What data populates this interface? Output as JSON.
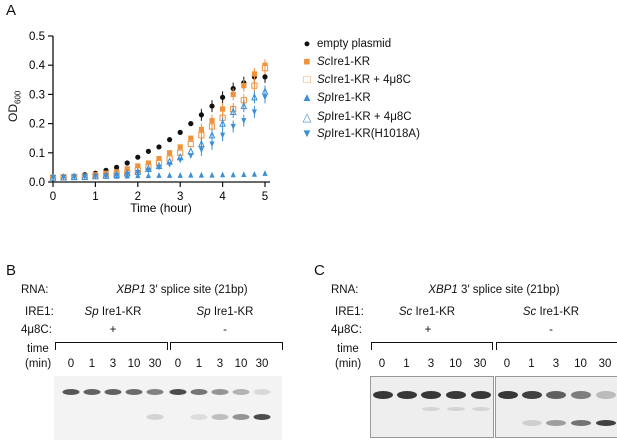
{
  "panelA": {
    "letter": "A",
    "chart_data": {
      "type": "scatter",
      "xlabel": "Time (hour)",
      "ylabel": "OD600",
      "xlim": [
        0,
        5.2
      ],
      "ylim": [
        0,
        0.5
      ],
      "xticks": [
        "0",
        "1",
        "2",
        "3",
        "4",
        "5"
      ],
      "yticks": [
        "0.0",
        "0.1",
        "0.2",
        "0.3",
        "0.4",
        "0.5"
      ],
      "x": [
        0,
        0.25,
        0.5,
        0.75,
        1,
        1.25,
        1.5,
        1.75,
        2,
        2.25,
        2.5,
        2.75,
        3,
        3.25,
        3.5,
        3.75,
        4,
        4.25,
        4.5,
        4.75,
        5
      ],
      "series": [
        {
          "name": "empty plasmid",
          "marker": "circle",
          "color": "#111111",
          "values": [
            0.015,
            0.018,
            0.02,
            0.025,
            0.03,
            0.04,
            0.05,
            0.065,
            0.085,
            0.105,
            0.12,
            0.145,
            0.17,
            0.2,
            0.23,
            0.26,
            0.29,
            0.32,
            0.34,
            0.36,
            0.36
          ]
        },
        {
          "name": "Sc Ire1-KR",
          "marker": "square",
          "color": "#f0923a",
          "values": [
            0.015,
            0.017,
            0.018,
            0.02,
            0.025,
            0.03,
            0.035,
            0.045,
            0.055,
            0.065,
            0.08,
            0.1,
            0.12,
            0.15,
            0.18,
            0.21,
            0.25,
            0.3,
            0.33,
            0.37,
            0.4
          ]
        },
        {
          "name": "Sc Ire1-KR + 4μ8C",
          "marker": "square-open",
          "color": "#f0923a",
          "values": [
            0.015,
            0.016,
            0.017,
            0.018,
            0.02,
            0.022,
            0.025,
            0.03,
            0.04,
            0.05,
            0.065,
            0.08,
            0.1,
            0.13,
            0.16,
            0.19,
            0.22,
            0.25,
            0.28,
            0.33,
            0.39
          ]
        },
        {
          "name": "Sp Ire1-KR",
          "marker": "triangle",
          "color": "#3a8fd6",
          "values": [
            0.015,
            0.016,
            0.017,
            0.018,
            0.019,
            0.02,
            0.02,
            0.021,
            0.022,
            0.022,
            0.023,
            0.023,
            0.023,
            0.024,
            0.024,
            0.024,
            0.025,
            0.025,
            0.026,
            0.027,
            0.03
          ]
        },
        {
          "name": "Sp Ire1-KR + 4μ8C",
          "marker": "triangle-open",
          "color": "#3a8fd6",
          "values": [
            0.015,
            0.016,
            0.017,
            0.018,
            0.02,
            0.022,
            0.025,
            0.03,
            0.035,
            0.045,
            0.055,
            0.07,
            0.085,
            0.105,
            0.13,
            0.16,
            0.2,
            0.24,
            0.26,
            0.29,
            0.31
          ]
        },
        {
          "name": "Sp Ire1-KR(H1018A)",
          "marker": "triangle-down",
          "color": "#3a8fd6",
          "values": [
            0.015,
            0.016,
            0.017,
            0.018,
            0.019,
            0.02,
            0.022,
            0.026,
            0.032,
            0.04,
            0.05,
            0.06,
            0.075,
            0.09,
            0.11,
            0.13,
            0.16,
            0.19,
            0.21,
            0.24,
            0.29
          ]
        }
      ]
    },
    "legend": [
      {
        "sym": "●",
        "color": "#111111",
        "prefix": "",
        "text": "empty plasmid"
      },
      {
        "sym": "■",
        "color": "#f0923a",
        "prefix": "Sc",
        "text": " Ire1-KR"
      },
      {
        "sym": "□",
        "color": "#f0923a",
        "prefix": "Sc",
        "text": " Ire1-KR + 4μ8C"
      },
      {
        "sym": "▲",
        "color": "#3a8fd6",
        "prefix": "Sp",
        "text": " Ire1-KR"
      },
      {
        "sym": "△",
        "color": "#3a8fd6",
        "prefix": "Sp",
        "text": " Ire1-KR + 4μ8C"
      },
      {
        "sym": "▼",
        "color": "#3a8fd6",
        "prefix": "Sp",
        "text": " Ire1-KR(H1018A)"
      }
    ]
  },
  "panelB": {
    "letter": "B",
    "rna_label": "RNA:",
    "rna_gene": "XBP1",
    "rna_text": " 3′ splice site (21bp)",
    "ire1_label": "IRE1:",
    "ire1_left_sp": "Sp",
    "ire1_left": " Ire1-KR",
    "ire1_right_sp": "Sp",
    "ire1_right": " Ire1-KR",
    "inhib_label": "4μ8C:",
    "inhib_left": "+",
    "inhib_right": "-",
    "time_label": "time",
    "time_unit": "(min)",
    "lanes": [
      "0",
      "1",
      "3",
      "10",
      "30",
      "0",
      "1",
      "3",
      "10",
      "30"
    ]
  },
  "panelC": {
    "letter": "C",
    "rna_label": "RNA:",
    "rna_gene": "XBP1",
    "rna_text": " 3′ splice site (21bp)",
    "ire1_label": "IRE1:",
    "ire1_left_sp": "Sc",
    "ire1_left": " Ire1-KR",
    "ire1_right_sp": "Sc",
    "ire1_right": " Ire1-KR",
    "inhib_label": "4μ8C:",
    "inhib_left": "+",
    "inhib_right": "-",
    "time_label": "time",
    "time_unit": "(min)",
    "lanes": [
      "0",
      "1",
      "3",
      "10",
      "30",
      "0",
      "1",
      "3",
      "10",
      "30"
    ]
  }
}
